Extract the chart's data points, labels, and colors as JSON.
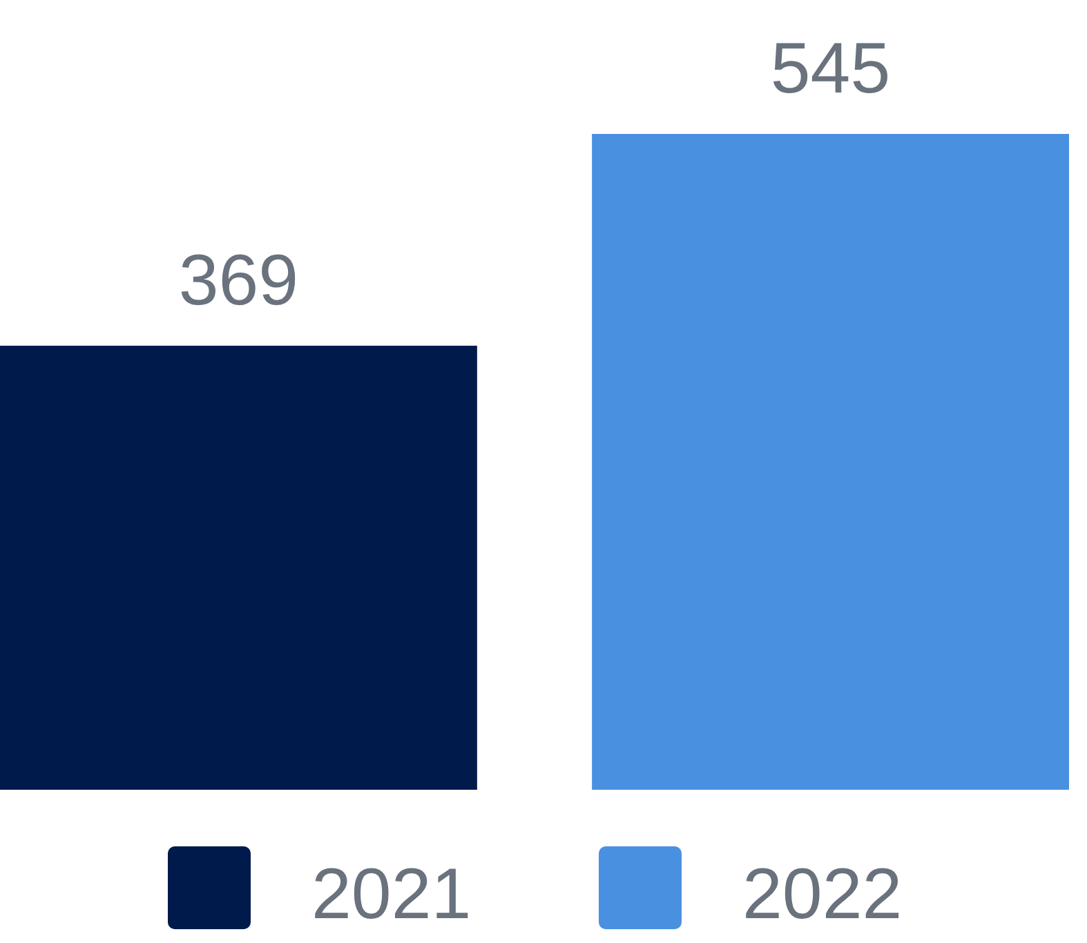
{
  "chart_data": {
    "type": "bar",
    "categories": [
      null
    ],
    "series": [
      {
        "name": "2021",
        "color": "#001a4b",
        "values": [
          369
        ]
      },
      {
        "name": "2022",
        "color": "#4a90e0",
        "values": [
          545
        ]
      }
    ],
    "data_labels": true,
    "legend": "bottom"
  }
}
